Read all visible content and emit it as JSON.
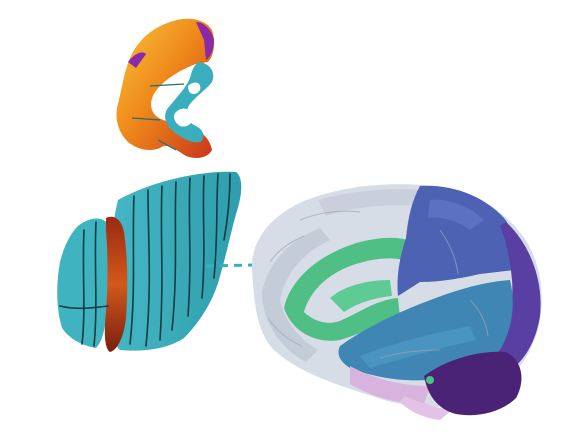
{
  "colors": {
    "background": "#ffffff",
    "teal_section": "#3aaebc",
    "teal_dark": "#1f6f78",
    "cut_line": "#0f3c42",
    "heat_orange": "#f08a1a",
    "heat_red": "#c8361c",
    "heat_yellow": "#f7c640",
    "heat_purple": "#8a2aa6",
    "brain_light_gray": "#d7dde6",
    "brain_mid_gray": "#b9c1cf",
    "brain_green": "#4fbf86",
    "brain_blue": "#3f86b5",
    "brain_indigo": "#4d62b3",
    "brain_purple": "#5a3fa3",
    "brain_dark_purple": "#4a2376",
    "brain_pink": "#d8b3de",
    "dashed_link": "#3aaebc"
  },
  "icons": {
    "coronal_slice": "heatmap-coronal-slice",
    "slab_stack": "sectioned-hemisphere-slabs",
    "brain_model": "parcellated-brain-3d"
  }
}
